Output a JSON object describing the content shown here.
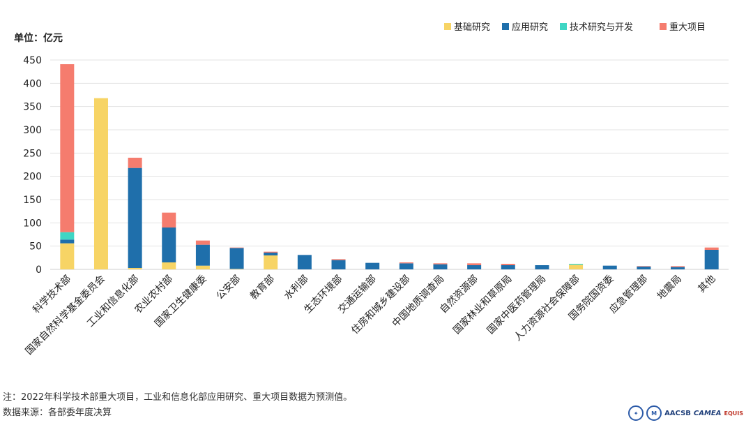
{
  "chart_data": {
    "type": "bar",
    "stacked": true,
    "unit_label": "单位：亿元",
    "ylim": [
      0,
      450
    ],
    "yticks": [
      0,
      50,
      100,
      150,
      200,
      250,
      300,
      350,
      400,
      450
    ],
    "grid": true,
    "legend_position": "top-right",
    "categories": [
      "科学技术部",
      "国家自然科学基金委员会",
      "工业和信息化部",
      "农业农村部",
      "国家卫生健康委",
      "公安部",
      "教育部",
      "水利部",
      "生态环境部",
      "交通运输部",
      "住房和城乡建设部",
      "中国地质调查局",
      "自然资源部",
      "国家林业和草原局",
      "国家中医药管理局",
      "人力资源社会保障部",
      "国务院国资委",
      "应急管理部",
      "地震局",
      "其他"
    ],
    "series": [
      {
        "name": "基础研究",
        "color": "#f7d465",
        "values": [
          56,
          368,
          3,
          15,
          8,
          1,
          30,
          0,
          0,
          0,
          0,
          0,
          0,
          0,
          0,
          10,
          0,
          0,
          0,
          0
        ]
      },
      {
        "name": "应用研究",
        "color": "#1f6fab",
        "values": [
          8,
          0,
          215,
          75,
          45,
          45,
          6,
          31,
          20,
          14,
          13,
          11,
          9,
          9,
          9,
          0,
          8,
          6,
          5,
          42
        ]
      },
      {
        "name": "技术研究与开发",
        "color": "#3ed6c4",
        "values": [
          16,
          0,
          0,
          0,
          0,
          0,
          0,
          0,
          0,
          0,
          0,
          0,
          0,
          0,
          0,
          2,
          0,
          0,
          0,
          0
        ]
      },
      {
        "name": "重大项目",
        "color": "#f57c6e",
        "values": [
          361,
          0,
          22,
          32,
          9,
          1,
          2,
          0,
          2,
          0,
          2,
          2,
          4,
          3,
          0,
          0,
          0,
          1,
          2,
          5
        ]
      }
    ]
  },
  "notes": {
    "note": "注：2022年科学技术部重大项目，工业和信息化部应用研究、重大项目数据为预测值。",
    "source": "数据来源：各部委年度决算"
  },
  "logos": {
    "aacsb": "AACSB",
    "camea": "CAMEA",
    "equis": "EQUIS"
  }
}
